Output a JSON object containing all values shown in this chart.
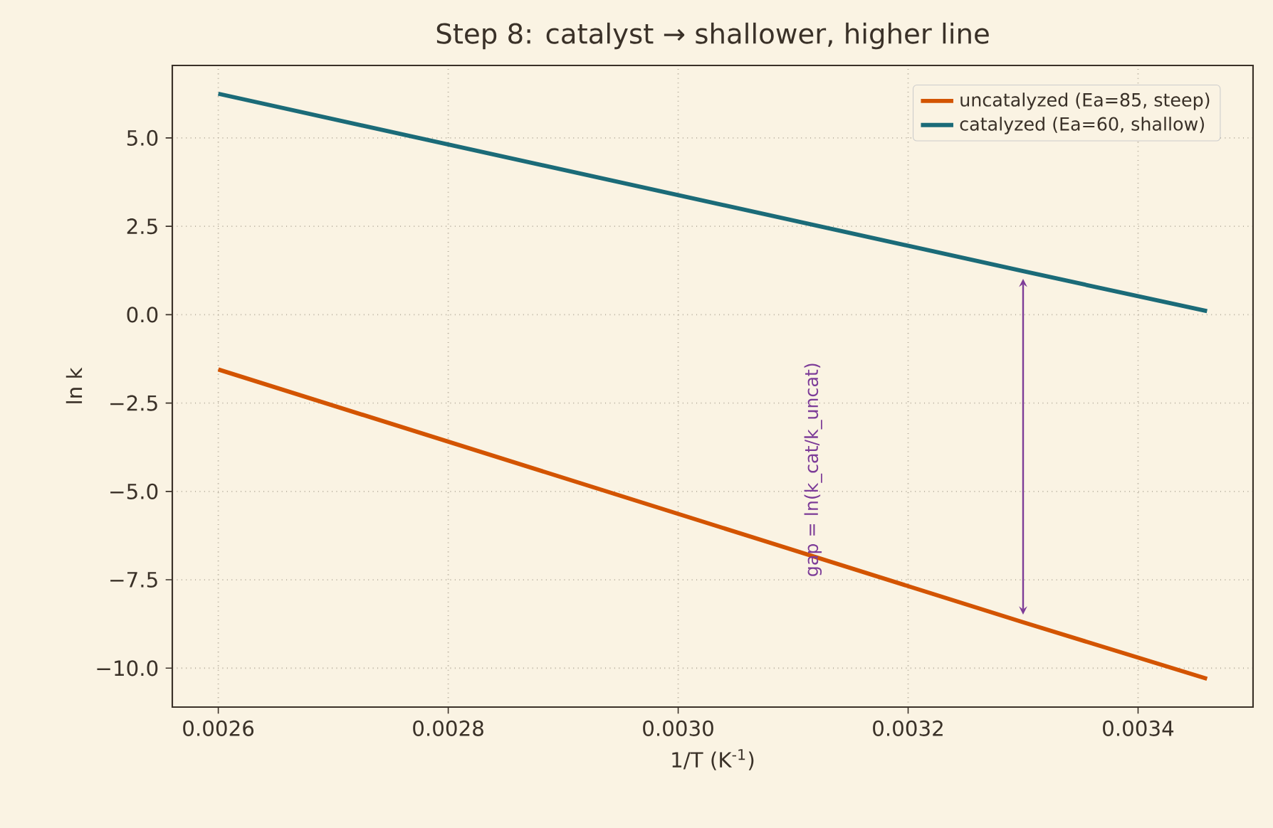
{
  "chart_data": {
    "type": "line",
    "title": "Step 8: catalyst → shallower, higher line",
    "xlabel": "1/T (K$^{-1}$)",
    "ylabel": "ln k",
    "x": [
      0.0026,
      0.0033,
      0.00346
    ],
    "series": [
      {
        "name": "uncatalyzed (Ea=85, steep)",
        "color": "#d35400",
        "values": [
          -1.55,
          -8.7,
          -10.3
        ]
      },
      {
        "name": "catalyzed (Ea=60, shallow)",
        "color": "#1b6b78",
        "values": [
          6.25,
          1.23,
          0.1
        ]
      }
    ],
    "xlim": [
      0.00256,
      0.0035
    ],
    "ylim": [
      -11.1,
      7.05
    ],
    "xticks": [
      {
        "value": 0.0026,
        "label": "0.0026"
      },
      {
        "value": 0.0028,
        "label": "0.0028"
      },
      {
        "value": 0.003,
        "label": "0.0030"
      },
      {
        "value": 0.0032,
        "label": "0.0032"
      },
      {
        "value": 0.0034,
        "label": "0.0034"
      }
    ],
    "yticks": [
      {
        "value": -10,
        "label": "−10.0"
      },
      {
        "value": -7.5,
        "label": "−7.5"
      },
      {
        "value": -5,
        "label": "−5.0"
      },
      {
        "value": -2.5,
        "label": "−2.5"
      },
      {
        "value": 0,
        "label": "0.0"
      },
      {
        "value": 2.5,
        "label": "2.5"
      },
      {
        "value": 5,
        "label": "5.0"
      }
    ],
    "annotations": [
      "gap = ln(k_cat/k_uncat)"
    ],
    "grid": true,
    "legend": "top right",
    "marker": "none",
    "line_style": "solid"
  }
}
